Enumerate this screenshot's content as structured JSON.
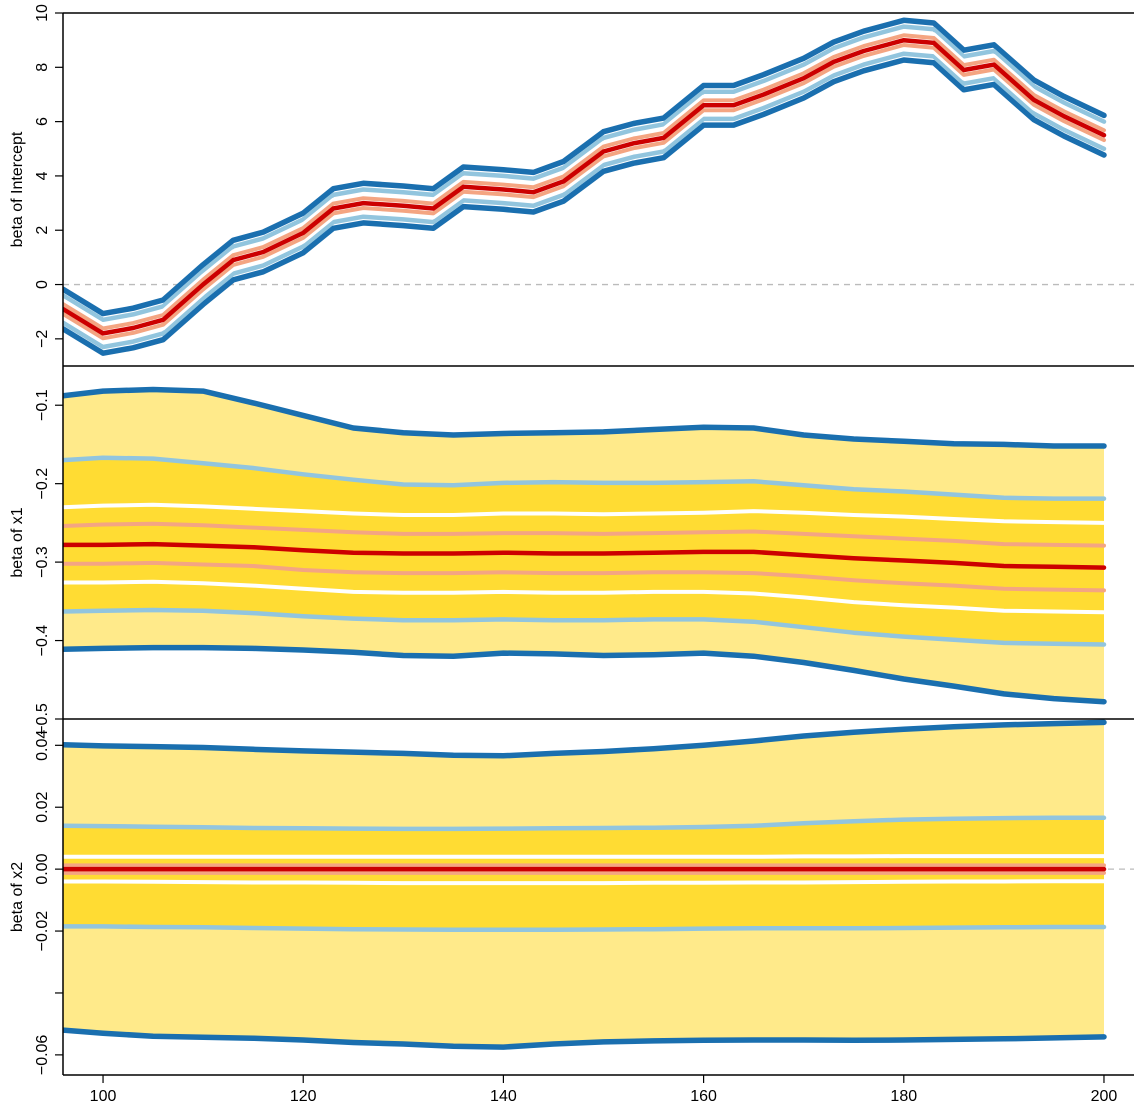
{
  "chart_data": {
    "type": "line",
    "x_axis": {
      "range": [
        96,
        203
      ],
      "ticks": [
        100,
        120,
        140,
        160,
        180,
        200
      ],
      "tick_labels": [
        "100",
        "120",
        "140",
        "160",
        "180",
        "200"
      ]
    },
    "colors": {
      "median": "#cc0000",
      "q25_75": "#f4a582",
      "q15_85": "#ffffff",
      "q05_95": "#92c5de",
      "q01_99": "#1a6faf",
      "band_outer": "#ffea8a",
      "band_inner": "#ffdc33",
      "zero_line": "#bbbbbb"
    },
    "panels": [
      {
        "ylabel": "beta of Intercept",
        "ylim": [
          -3,
          10
        ],
        "ticks": [
          -2,
          0,
          2,
          4,
          6,
          8,
          10
        ],
        "tick_labels": [
          "-2",
          "0",
          "2",
          "4",
          "6",
          "8",
          "10"
        ],
        "zero_line": true,
        "shaded": false,
        "x": [
          96,
          100,
          103,
          106,
          110,
          113,
          116,
          120,
          123,
          126,
          130,
          133,
          136,
          140,
          143,
          146,
          150,
          153,
          156,
          160,
          163,
          166,
          170,
          173,
          176,
          180,
          183,
          186,
          189,
          193,
          196,
          200
        ],
        "median": [
          -0.9,
          -1.8,
          -1.6,
          -1.3,
          0.0,
          0.9,
          1.2,
          1.9,
          2.8,
          3.0,
          2.9,
          2.8,
          3.6,
          3.5,
          3.4,
          3.8,
          4.9,
          5.2,
          5.4,
          6.6,
          6.6,
          7.0,
          7.6,
          8.2,
          8.6,
          9.0,
          8.9,
          7.9,
          8.1,
          6.8,
          6.2,
          5.5
        ],
        "offsets": {
          "q25_75": 0.18,
          "q15_85": 0.32,
          "q05_95": 0.5,
          "q01_99": 0.73
        }
      },
      {
        "ylabel": "beta of x1",
        "ylim": [
          -0.5,
          -0.05
        ],
        "ticks": [
          -0.5,
          -0.4,
          -0.3,
          -0.2,
          -0.1
        ],
        "tick_labels": [
          "-0.5",
          "-0.4",
          "-0.3",
          "-0.2",
          "-0.1"
        ],
        "zero_line": false,
        "shaded": true,
        "x": [
          96,
          100,
          105,
          110,
          115,
          120,
          125,
          130,
          135,
          140,
          145,
          150,
          155,
          160,
          165,
          170,
          175,
          180,
          185,
          190,
          195,
          200
        ],
        "median": [
          -0.278,
          -0.278,
          -0.277,
          -0.279,
          -0.281,
          -0.285,
          -0.288,
          -0.289,
          -0.289,
          -0.288,
          -0.289,
          -0.289,
          -0.288,
          -0.287,
          -0.287,
          -0.291,
          -0.295,
          -0.298,
          -0.301,
          -0.305,
          -0.306,
          -0.307
        ],
        "q25": [
          -0.302,
          -0.302,
          -0.301,
          -0.303,
          -0.305,
          -0.31,
          -0.313,
          -0.314,
          -0.314,
          -0.313,
          -0.314,
          -0.314,
          -0.313,
          -0.313,
          -0.314,
          -0.318,
          -0.323,
          -0.327,
          -0.33,
          -0.334,
          -0.335,
          -0.336
        ],
        "q75": [
          -0.254,
          -0.252,
          -0.251,
          -0.253,
          -0.256,
          -0.259,
          -0.262,
          -0.264,
          -0.264,
          -0.263,
          -0.263,
          -0.264,
          -0.263,
          -0.262,
          -0.261,
          -0.264,
          -0.267,
          -0.27,
          -0.273,
          -0.277,
          -0.278,
          -0.279
        ],
        "q15": [
          -0.326,
          -0.326,
          -0.325,
          -0.327,
          -0.33,
          -0.334,
          -0.338,
          -0.339,
          -0.339,
          -0.338,
          -0.339,
          -0.339,
          -0.338,
          -0.338,
          -0.34,
          -0.345,
          -0.351,
          -0.355,
          -0.358,
          -0.362,
          -0.363,
          -0.364
        ],
        "q85": [
          -0.23,
          -0.228,
          -0.227,
          -0.229,
          -0.232,
          -0.235,
          -0.238,
          -0.24,
          -0.24,
          -0.238,
          -0.238,
          -0.239,
          -0.238,
          -0.237,
          -0.235,
          -0.237,
          -0.24,
          -0.242,
          -0.245,
          -0.248,
          -0.249,
          -0.25
        ],
        "q05": [
          -0.363,
          -0.362,
          -0.361,
          -0.362,
          -0.365,
          -0.369,
          -0.372,
          -0.374,
          -0.374,
          -0.373,
          -0.374,
          -0.374,
          -0.373,
          -0.373,
          -0.376,
          -0.383,
          -0.39,
          -0.395,
          -0.399,
          -0.403,
          -0.404,
          -0.405
        ],
        "q95": [
          -0.17,
          -0.167,
          -0.168,
          -0.174,
          -0.18,
          -0.188,
          -0.195,
          -0.201,
          -0.202,
          -0.199,
          -0.198,
          -0.199,
          -0.199,
          -0.198,
          -0.197,
          -0.202,
          -0.207,
          -0.21,
          -0.214,
          -0.218,
          -0.219,
          -0.219
        ],
        "q01": [
          -0.411,
          -0.41,
          -0.409,
          -0.409,
          -0.41,
          -0.412,
          -0.415,
          -0.419,
          -0.42,
          -0.416,
          -0.417,
          -0.419,
          -0.418,
          -0.416,
          -0.42,
          -0.428,
          -0.438,
          -0.449,
          -0.458,
          -0.468,
          -0.474,
          -0.478
        ],
        "q99": [
          -0.088,
          -0.082,
          -0.08,
          -0.082,
          -0.097,
          -0.113,
          -0.129,
          -0.135,
          -0.138,
          -0.136,
          -0.135,
          -0.134,
          -0.131,
          -0.128,
          -0.129,
          -0.138,
          -0.143,
          -0.146,
          -0.149,
          -0.15,
          -0.152,
          -0.152
        ]
      },
      {
        "ylabel": "beta of x2",
        "ylim": [
          -0.0665,
          0.0485
        ],
        "ticks": [
          -0.06,
          -0.04,
          -0.02,
          0.0,
          0.02,
          0.04
        ],
        "tick_labels": [
          "-0.06",
          "",
          "-0.02",
          "0.00",
          "0.02",
          "0.04"
        ],
        "zero_line": true,
        "shaded": true,
        "x": [
          96,
          100,
          105,
          110,
          115,
          120,
          125,
          130,
          135,
          140,
          145,
          150,
          155,
          160,
          165,
          170,
          175,
          180,
          185,
          190,
          195,
          200
        ],
        "median": [
          0.0,
          0.0,
          0.0,
          0.0,
          0.0,
          0.0,
          0.0,
          0.0,
          0.0,
          0.0,
          0.0,
          0.0,
          0.0,
          0.0,
          0.0,
          0.0,
          0.0,
          0.0,
          0.0,
          0.0,
          0.0,
          0.0
        ],
        "q25": [
          -0.0012,
          -0.0012,
          -0.0012,
          -0.0012,
          -0.0012,
          -0.0012,
          -0.0012,
          -0.0012,
          -0.0012,
          -0.0012,
          -0.0012,
          -0.0012,
          -0.0012,
          -0.0012,
          -0.0012,
          -0.0012,
          -0.0012,
          -0.0012,
          -0.0012,
          -0.0012,
          -0.0012,
          -0.0012
        ],
        "q75": [
          0.0012,
          0.0012,
          0.0012,
          0.0012,
          0.0012,
          0.0012,
          0.0012,
          0.0012,
          0.0012,
          0.0012,
          0.0012,
          0.0012,
          0.0012,
          0.0012,
          0.0012,
          0.0012,
          0.0012,
          0.0012,
          0.0012,
          0.0012,
          0.0012,
          0.0012
        ],
        "q15": [
          -0.004,
          -0.004,
          -0.0041,
          -0.0042,
          -0.0043,
          -0.0043,
          -0.0044,
          -0.0045,
          -0.0045,
          -0.0045,
          -0.0045,
          -0.0045,
          -0.0044,
          -0.0044,
          -0.0043,
          -0.0043,
          -0.0042,
          -0.0041,
          -0.004,
          -0.004,
          -0.0039,
          -0.0039
        ],
        "q85": [
          0.004,
          0.004,
          0.004,
          0.004,
          0.004,
          0.004,
          0.004,
          0.004,
          0.004,
          0.004,
          0.004,
          0.004,
          0.004,
          0.004,
          0.004,
          0.0041,
          0.0041,
          0.0042,
          0.0042,
          0.0042,
          0.0042,
          0.0042
        ],
        "q05": [
          -0.0185,
          -0.0185,
          -0.0187,
          -0.0188,
          -0.019,
          -0.0192,
          -0.0194,
          -0.0195,
          -0.0196,
          -0.0196,
          -0.0196,
          -0.0195,
          -0.0194,
          -0.0192,
          -0.0191,
          -0.0191,
          -0.0191,
          -0.019,
          -0.0189,
          -0.0188,
          -0.0187,
          -0.0187
        ],
        "q95": [
          0.014,
          0.0139,
          0.0137,
          0.0135,
          0.0133,
          0.0132,
          0.0131,
          0.013,
          0.013,
          0.0131,
          0.0132,
          0.0133,
          0.0134,
          0.0136,
          0.014,
          0.0148,
          0.0155,
          0.016,
          0.0163,
          0.0165,
          0.0166,
          0.0166
        ],
        "q01": [
          -0.052,
          -0.053,
          -0.054,
          -0.0543,
          -0.0546,
          -0.0552,
          -0.056,
          -0.0565,
          -0.0572,
          -0.0575,
          -0.0565,
          -0.0558,
          -0.0555,
          -0.0553,
          -0.0552,
          -0.0552,
          -0.0553,
          -0.0552,
          -0.055,
          -0.0548,
          -0.0545,
          -0.0542
        ],
        "q99": [
          0.0402,
          0.0398,
          0.0396,
          0.0393,
          0.0387,
          0.0382,
          0.0378,
          0.0374,
          0.0368,
          0.0366,
          0.0374,
          0.038,
          0.0389,
          0.04,
          0.0414,
          0.043,
          0.0442,
          0.0452,
          0.046,
          0.0466,
          0.047,
          0.0474
        ]
      }
    ]
  }
}
